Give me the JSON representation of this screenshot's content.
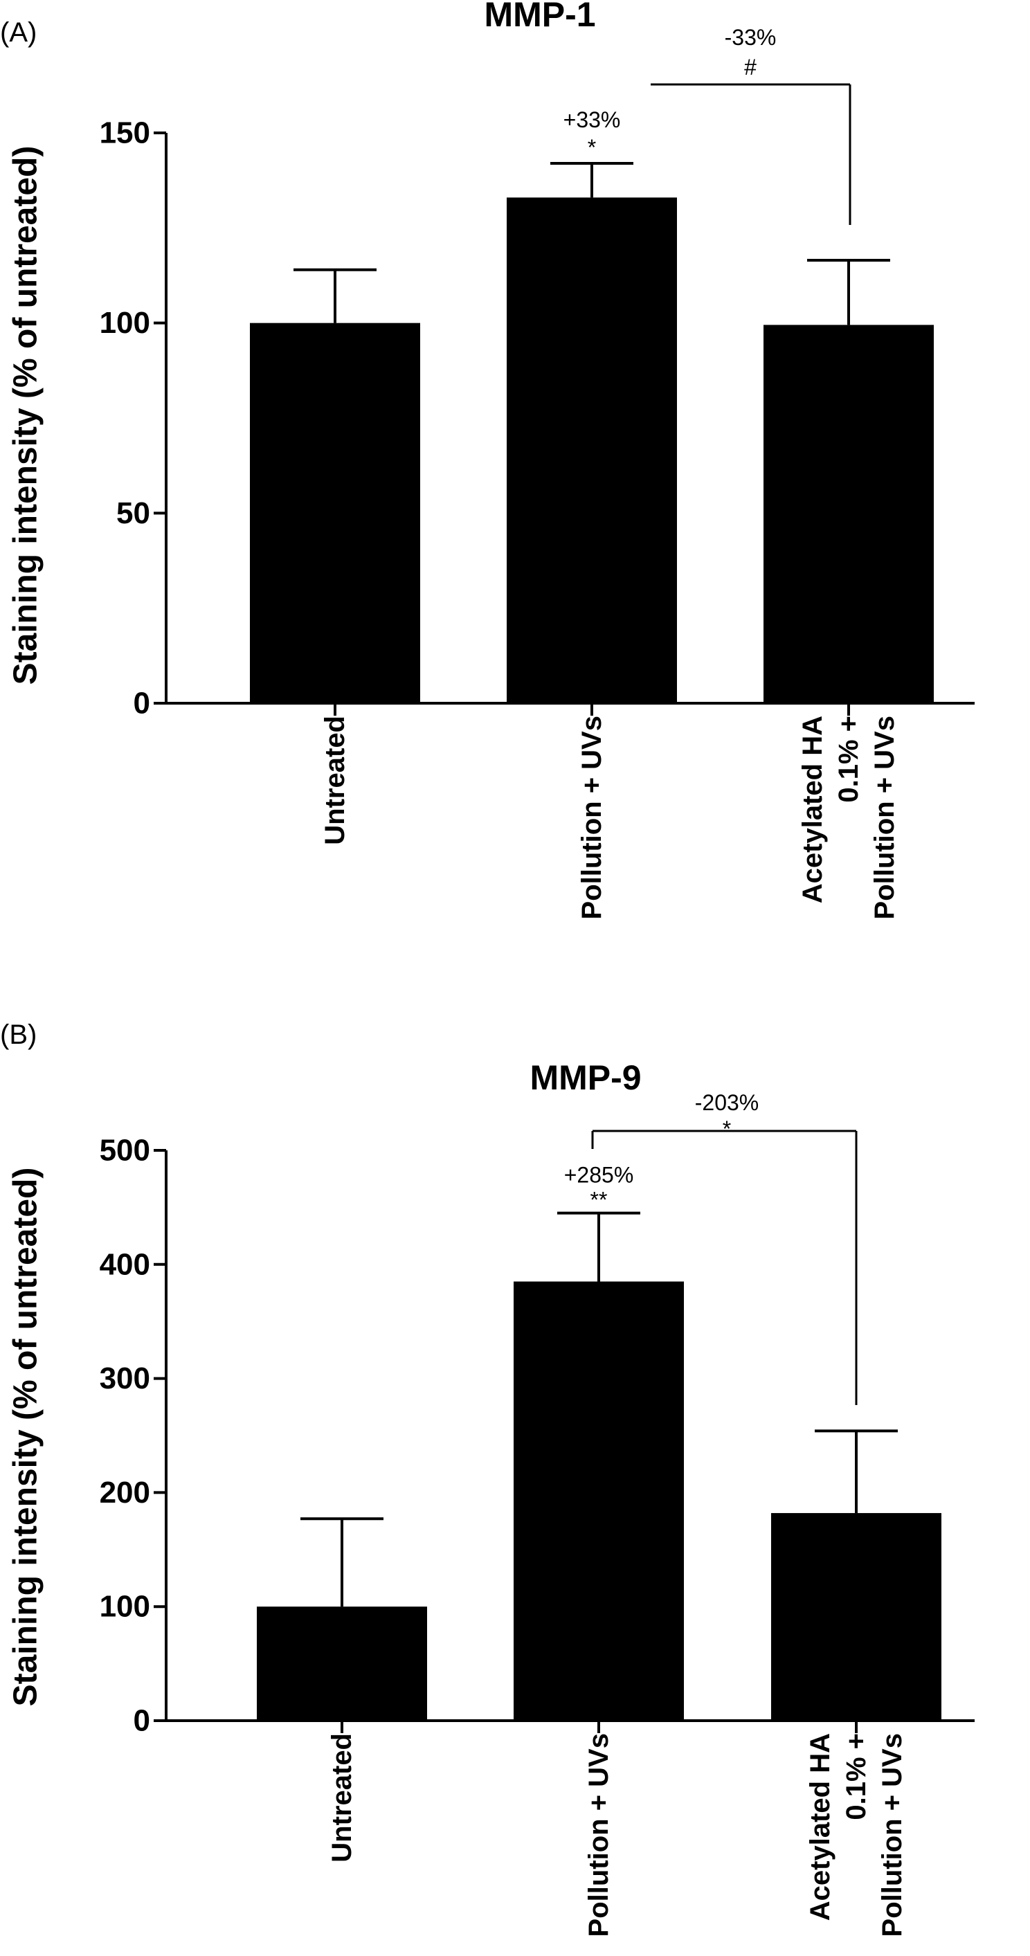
{
  "chart_data": [
    {
      "type": "bar",
      "panel": "(A)",
      "title": "MMP-1",
      "ylabel": "Staining intensity (% of untreated)",
      "ylim": [
        0,
        150
      ],
      "yticks": [
        0,
        50,
        100,
        150
      ],
      "categories": [
        [
          "Untreated"
        ],
        [
          "Pollution + UVs"
        ],
        [
          "Acetylated HA",
          "0.1% +",
          "Pollution + UVs"
        ]
      ],
      "values": [
        100,
        133,
        99.5
      ],
      "errors": [
        14,
        9,
        17
      ],
      "bar_annotations": [
        null,
        {
          "pct": "+33%",
          "sig": "*"
        },
        null
      ],
      "bracket": {
        "from": 1,
        "to": 2,
        "pct": "-33%",
        "sig": "#"
      },
      "color": "#000000"
    },
    {
      "type": "bar",
      "panel": "(B)",
      "title": "MMP-9",
      "ylabel": "Staining intensity (% of untreated)",
      "ylim": [
        0,
        500
      ],
      "yticks": [
        0,
        100,
        200,
        300,
        400,
        500
      ],
      "categories": [
        [
          "Untreated"
        ],
        [
          "Pollution + UVs"
        ],
        [
          "Acetylated HA",
          "0.1% +",
          "Pollution + UVs"
        ]
      ],
      "values": [
        100,
        385,
        182
      ],
      "errors": [
        77,
        60,
        72
      ],
      "bar_annotations": [
        null,
        {
          "pct": "+285%",
          "sig": "**"
        },
        null
      ],
      "bracket": {
        "from": 1,
        "to": 2,
        "pct": "-203%",
        "sig": "*"
      },
      "color": "#000000"
    }
  ]
}
